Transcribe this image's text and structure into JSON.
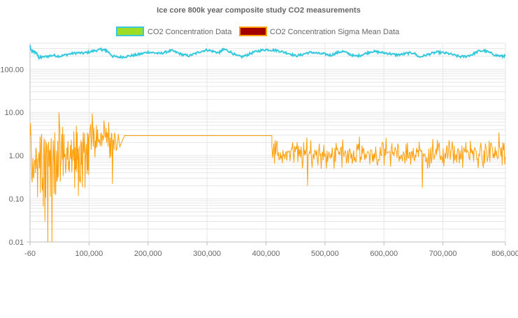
{
  "chart_data": {
    "type": "line",
    "title": "Ice core 800k year composite study CO2 measurements",
    "x_ticks": [
      "-60",
      "100,000",
      "200,000",
      "300,000",
      "400,000",
      "500,000",
      "600,000",
      "700,000",
      "806,000"
    ],
    "x_tick_values": [
      -60,
      100000,
      200000,
      300000,
      400000,
      500000,
      600000,
      700000,
      806000
    ],
    "xlim": [
      -60,
      806000
    ],
    "y_scale": "log",
    "y_ticks": [
      "0.01",
      "0.10",
      "1.00",
      "10.00",
      "100.00"
    ],
    "y_tick_values": [
      0.01,
      0.1,
      1,
      10,
      100
    ],
    "ylim": [
      0.01,
      400
    ],
    "grid": true,
    "legend_position": "top",
    "series": [
      {
        "name": "CO2 Concentration Data",
        "color": "#36c9dd",
        "legend_fill": "#9fdc25",
        "legend_border": "#36c9dd",
        "x": [
          0,
          1000,
          5000,
          10000,
          15000,
          20000,
          30000,
          40000,
          50000,
          60000,
          70000,
          80000,
          90000,
          100000,
          110000,
          120000,
          125000,
          130000,
          140000,
          150000,
          160000,
          170000,
          180000,
          190000,
          200000,
          210000,
          220000,
          230000,
          240000,
          250000,
          260000,
          270000,
          280000,
          290000,
          300000,
          310000,
          320000,
          325000,
          330000,
          340000,
          350000,
          360000,
          370000,
          380000,
          390000,
          400000,
          410000,
          420000,
          430000,
          440000,
          450000,
          460000,
          470000,
          480000,
          490000,
          500000,
          510000,
          520000,
          530000,
          540000,
          550000,
          560000,
          570000,
          580000,
          590000,
          600000,
          610000,
          620000,
          630000,
          640000,
          650000,
          660000,
          670000,
          680000,
          690000,
          700000,
          710000,
          720000,
          730000,
          740000,
          750000,
          760000,
          770000,
          780000,
          790000,
          800000,
          806000
        ],
        "values": [
          350,
          280,
          260,
          240,
          185,
          190,
          200,
          210,
          200,
          215,
          230,
          240,
          235,
          250,
          270,
          285,
          280,
          270,
          200,
          190,
          195,
          205,
          215,
          230,
          250,
          240,
          230,
          250,
          270,
          240,
          215,
          205,
          230,
          260,
          280,
          260,
          240,
          270,
          290,
          250,
          205,
          195,
          220,
          250,
          270,
          285,
          280,
          270,
          250,
          230,
          205,
          215,
          240,
          245,
          230,
          225,
          210,
          240,
          260,
          230,
          200,
          210,
          235,
          260,
          250,
          240,
          230,
          215,
          220,
          235,
          240,
          190,
          210,
          230,
          250,
          240,
          230,
          210,
          195,
          200,
          220,
          260,
          270,
          240,
          210,
          200,
          205
        ]
      },
      {
        "name": "CO2 Concentration Sigma Mean Data",
        "color": "#ff9f0a",
        "legend_fill": "#a30000",
        "legend_border": "#ff9f0a",
        "segments": [
          {
            "x_start": 0,
            "x_end": 100000,
            "median": 0.9,
            "spread": 1.2
          },
          {
            "x_start": 100000,
            "x_end": 150000,
            "median": 2.6,
            "spread": 0.5
          },
          {
            "x_start": 410000,
            "x_end": 806000,
            "median": 1.1,
            "spread": 0.45
          }
        ],
        "constant": {
          "x_start": 160000,
          "x_end": 410000,
          "value": 2.9
        },
        "spikes": [
          {
            "x": 105000,
            "value": 9.5
          },
          {
            "x": 125000,
            "value": 6.5
          },
          {
            "x": 140000,
            "value": 0.22
          },
          {
            "x": 30000,
            "value": 0.01
          },
          {
            "x": 37000,
            "value": 0.01
          },
          {
            "x": 25000,
            "value": 0.03
          },
          {
            "x": 470000,
            "value": 0.2
          },
          {
            "x": 665000,
            "value": 0.18
          },
          {
            "x": 795000,
            "value": 3.4
          }
        ]
      }
    ]
  }
}
